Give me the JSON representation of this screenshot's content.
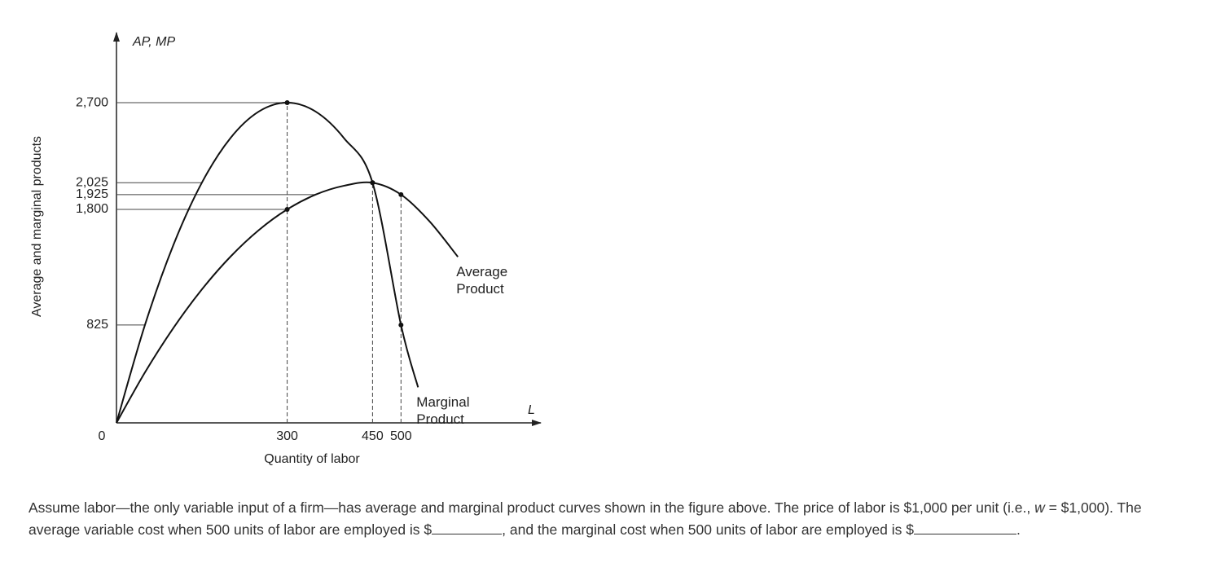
{
  "chart_data": {
    "type": "line",
    "y_axis_title": "Average and marginal products",
    "y_axis_label": "AP, MP",
    "x_axis_label": "L",
    "x_axis_title": "Quantity of labor",
    "xlim": [
      0,
      740
    ],
    "ylim": [
      0,
      3250
    ],
    "xticks": [
      0,
      300,
      450,
      500
    ],
    "yticks": [
      {
        "value": 2700,
        "label": "2,700"
      },
      {
        "value": 2025,
        "label": "2,025"
      },
      {
        "value": 1925,
        "label": "1,925"
      },
      {
        "value": 1800,
        "label": "1,800"
      },
      825
    ],
    "series": [
      {
        "name": "Marginal Product",
        "color": "#111111",
        "x": [
          0,
          50,
          100,
          150,
          200,
          250,
          300,
          350,
          400,
          450,
          500,
          530
        ],
        "values": [
          0,
          825,
          1500,
          2025,
          2400,
          2625,
          2700,
          2625,
          2400,
          2025,
          825,
          300
        ]
      },
      {
        "name": "Average Product",
        "color": "#111111",
        "x": [
          0,
          50,
          100,
          150,
          200,
          250,
          300,
          350,
          400,
          450,
          500,
          550,
          600
        ],
        "values": [
          0,
          425,
          800,
          1125,
          1400,
          1625,
          1800,
          1925,
          2000,
          2025,
          1925,
          1700,
          1400
        ]
      }
    ]
  },
  "question": {
    "parts": [
      "Assume labor—the only variable input of a firm—has average and marginal product curves shown in the figure above. The price of labor is $1,000 per unit (i.e., ",
      "w",
      " = $1,000). The average variable cost when 500 units of labor are employed is $",
      ", and the marginal cost when 500 units of labor are employed is $",
      "."
    ]
  }
}
